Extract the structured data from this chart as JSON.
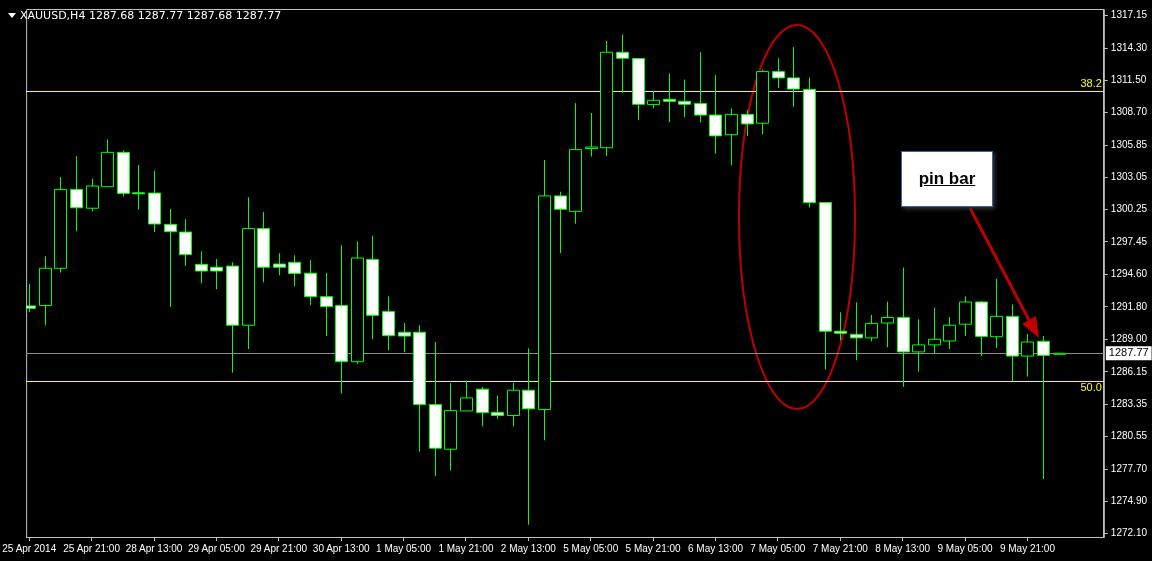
{
  "chart_data": {
    "type": "candlestick",
    "title": "XAUUSD,H4 1287.68 1287.77 1287.68 1287.77",
    "color": "#00ff00",
    "categories": [
      "25 Apr 2014",
      null,
      null,
      null,
      "25 Apr 21:00",
      null,
      null,
      null,
      "28 Apr 13:00",
      null,
      null,
      null,
      "29 Apr 05:00",
      null,
      null,
      null,
      "29 Apr 21:00",
      null,
      null,
      null,
      "30 Apr 13:00",
      null,
      null,
      null,
      "1 May 05:00",
      null,
      null,
      null,
      "1 May 21:00",
      null,
      null,
      null,
      "2 May 13:00",
      null,
      null,
      null,
      "5 May 05:00",
      null,
      null,
      null,
      "5 May 21:00",
      null,
      null,
      null,
      "6 May 13:00",
      null,
      null,
      null,
      "7 May 05:00",
      null,
      null,
      null,
      "7 May 21:00",
      null,
      null,
      null,
      "8 May 13:00",
      null,
      null,
      null,
      "9 May 05:00",
      null,
      null,
      null,
      "9 May 21:00",
      null,
      null
    ],
    "ohlc": [
      [
        1291.89,
        1293.79,
        1291.34,
        1291.68
      ],
      [
        1291.92,
        1296.2,
        1290.21,
        1295.16
      ],
      [
        1295.16,
        1303.1,
        1294.79,
        1302.0
      ],
      [
        1302.0,
        1304.9,
        1298.37,
        1300.42
      ],
      [
        1300.38,
        1302.95,
        1300.11,
        1302.31
      ],
      [
        1302.25,
        1306.36,
        1302.25,
        1305.24
      ],
      [
        1305.24,
        1305.42,
        1301.39,
        1301.67
      ],
      [
        1301.72,
        1304.14,
        1300.26,
        1301.7
      ],
      [
        1301.7,
        1303.65,
        1298.31,
        1299.01
      ],
      [
        1298.98,
        1300.32,
        1291.8,
        1298.34
      ],
      [
        1298.31,
        1299.43,
        1295.37,
        1296.35
      ],
      [
        1295.5,
        1296.63,
        1293.85,
        1294.92
      ],
      [
        1295.25,
        1295.96,
        1293.33,
        1294.92
      ],
      [
        1295.35,
        1295.68,
        1286.09,
        1290.21
      ],
      [
        1290.21,
        1301.33,
        1288.14,
        1298.61
      ],
      [
        1298.61,
        1300.05,
        1293.94,
        1295.25
      ],
      [
        1295.53,
        1296.47,
        1294.55,
        1295.25
      ],
      [
        1295.68,
        1296.29,
        1293.6,
        1294.7
      ],
      [
        1294.73,
        1295.86,
        1291.95,
        1292.69
      ],
      [
        1292.69,
        1294.76,
        1289.27,
        1291.83
      ],
      [
        1291.92,
        1297.15,
        1284.29,
        1287.04
      ],
      [
        1287.04,
        1297.48,
        1286.85,
        1296.05
      ],
      [
        1295.92,
        1298.0,
        1288.99,
        1291.07
      ],
      [
        1291.4,
        1292.72,
        1288.04,
        1289.3
      ],
      [
        1289.6,
        1290.4,
        1287.86,
        1289.27
      ],
      [
        1289.6,
        1290.21,
        1279.22,
        1283.31
      ],
      [
        1283.31,
        1288.75,
        1277.11,
        1279.52
      ],
      [
        1279.43,
        1285.17,
        1277.6,
        1282.79
      ],
      [
        1282.76,
        1285.39,
        1282.76,
        1283.89
      ],
      [
        1284.65,
        1284.84,
        1281.42,
        1282.61
      ],
      [
        1282.64,
        1284.1,
        1282.09,
        1282.36
      ],
      [
        1282.36,
        1285.2,
        1281.42,
        1284.56
      ],
      [
        1284.56,
        1288.2,
        1272.87,
        1282.94
      ],
      [
        1282.88,
        1304.57,
        1280.2,
        1301.45
      ],
      [
        1301.45,
        1301.82,
        1296.47,
        1300.29
      ],
      [
        1300.11,
        1309.52,
        1299.04,
        1305.48
      ],
      [
        1305.57,
        1308.66,
        1304.87,
        1305.7
      ],
      [
        1305.64,
        1314.92,
        1304.93,
        1313.94
      ],
      [
        1313.94,
        1315.47,
        1310.43,
        1313.42
      ],
      [
        1313.39,
        1313.39,
        1308.05,
        1309.42
      ],
      [
        1309.39,
        1310.58,
        1309.06,
        1309.76
      ],
      [
        1309.85,
        1312.08,
        1307.87,
        1309.67
      ],
      [
        1309.67,
        1311.56,
        1308.29,
        1309.42
      ],
      [
        1309.48,
        1313.94,
        1307.84,
        1308.48
      ],
      [
        1308.48,
        1311.96,
        1305.12,
        1306.67
      ],
      [
        1306.77,
        1309.06,
        1304.11,
        1308.54
      ],
      [
        1308.54,
        1308.9,
        1306.67,
        1307.71
      ],
      [
        1307.77,
        1312.42,
        1306.83,
        1312.26
      ],
      [
        1312.26,
        1313.42,
        1310.83,
        1311.71
      ],
      [
        1311.71,
        1314.4,
        1309.21,
        1310.74
      ],
      [
        1310.71,
        1311.74,
        1300.44,
        1300.87
      ],
      [
        1300.87,
        1300.87,
        1286.36,
        1289.69
      ],
      [
        1289.69,
        1291.34,
        1288.9,
        1289.51
      ],
      [
        1289.42,
        1292.2,
        1287.16,
        1289.11
      ],
      [
        1289.11,
        1291.1,
        1288.81,
        1290.37
      ],
      [
        1290.4,
        1292.26,
        1288.29,
        1290.88
      ],
      [
        1290.88,
        1295.22,
        1284.84,
        1287.89
      ],
      [
        1287.89,
        1290.73,
        1286.18,
        1288.5
      ],
      [
        1288.5,
        1291.74,
        1287.77,
        1288.99
      ],
      [
        1288.84,
        1290.92,
        1288.14,
        1290.21
      ],
      [
        1290.3,
        1292.72,
        1289.27,
        1292.23
      ],
      [
        1292.23,
        1292.32,
        1287.53,
        1289.24
      ],
      [
        1289.21,
        1294.24,
        1288.23,
        1290.98
      ],
      [
        1290.98,
        1292.02,
        1285.33,
        1287.53
      ],
      [
        1287.53,
        1289.45,
        1285.75,
        1288.75
      ],
      [
        1288.81,
        1289.27,
        1276.84,
        1287.59
      ],
      [
        1287.68,
        1287.77,
        1287.68,
        1287.77
      ]
    ],
    "ylim": [
      1271.8,
      1317.7
    ],
    "yticks": [
      {
        "value": 1272.1,
        "label": "1272.10"
      },
      {
        "value": 1274.9,
        "label": "1274.90"
      },
      {
        "value": 1277.7,
        "label": "1277.70"
      },
      {
        "value": 1280.55,
        "label": "1280.55"
      },
      {
        "value": 1283.35,
        "label": "1283.35"
      },
      {
        "value": 1286.15,
        "label": "1286.15"
      },
      {
        "value": 1289,
        "label": "1289.00"
      },
      {
        "value": 1291.8,
        "label": "1291.80"
      },
      {
        "value": 1294.6,
        "label": "1294.60"
      },
      {
        "value": 1297.45,
        "label": "1297.45"
      },
      {
        "value": 1300.25,
        "label": "1300.25"
      },
      {
        "value": 1303.05,
        "label": "1303.05"
      },
      {
        "value": 1305.85,
        "label": "1305.85"
      },
      {
        "value": 1308.7,
        "label": "1308.70"
      },
      {
        "value": 1311.5,
        "label": "1311.50"
      },
      {
        "value": 1314.3,
        "label": "1314.30"
      },
      {
        "value": 1317.15,
        "label": "1317.15"
      }
    ],
    "colors": [
      "#ffffff",
      "#000000",
      "#000000",
      "#ffffff",
      "#000000",
      "#000000",
      "#ffffff",
      "#ffffff",
      "#ffffff",
      "#ffffff",
      "#ffffff",
      "#ffffff",
      "#ffffff",
      "#ffffff",
      "#000000",
      "#ffffff",
      "#ffffff",
      "#ffffff",
      "#ffffff",
      "#ffffff",
      "#ffffff",
      "#000000",
      "#ffffff",
      "#ffffff",
      "#ffffff",
      "#ffffff",
      "#ffffff",
      "#000000",
      "#000000",
      "#ffffff",
      "#ffffff",
      "#000000",
      "#ffffff",
      "#000000",
      "#ffffff",
      "#000000",
      "#000000",
      "#000000",
      "#ffffff",
      "#ffffff",
      "#000000",
      "#ffffff",
      "#ffffff",
      "#ffffff",
      "#ffffff",
      "#000000",
      "#ffffff",
      "#000000",
      "#ffffff",
      "#ffffff",
      "#ffffff",
      "#ffffff",
      "#ffffff",
      "#ffffff",
      "#000000",
      "#000000",
      "#ffffff",
      "#000000",
      "#000000",
      "#000000",
      "#000000",
      "#ffffff",
      "#000000",
      "#ffffff",
      "#000000",
      "#ffffff",
      "#000000"
    ],
    "ref_lines": [
      {
        "axis": "y",
        "value": 1310.58,
        "color": "#ffff00"
      },
      {
        "axis": "y",
        "value": 1285.4,
        "color": "#ffff00"
      },
      {
        "axis": "y",
        "value": 1287.77,
        "label": "1287.77",
        "color": "#8c8c8c"
      }
    ],
    "annotations": [
      "pin bar",
      {
        "text": "38.2",
        "y": 1310.58
      },
      {
        "text": "50.0",
        "y": 1285.4
      }
    ],
    "grid": false,
    "legend": false
  }
}
